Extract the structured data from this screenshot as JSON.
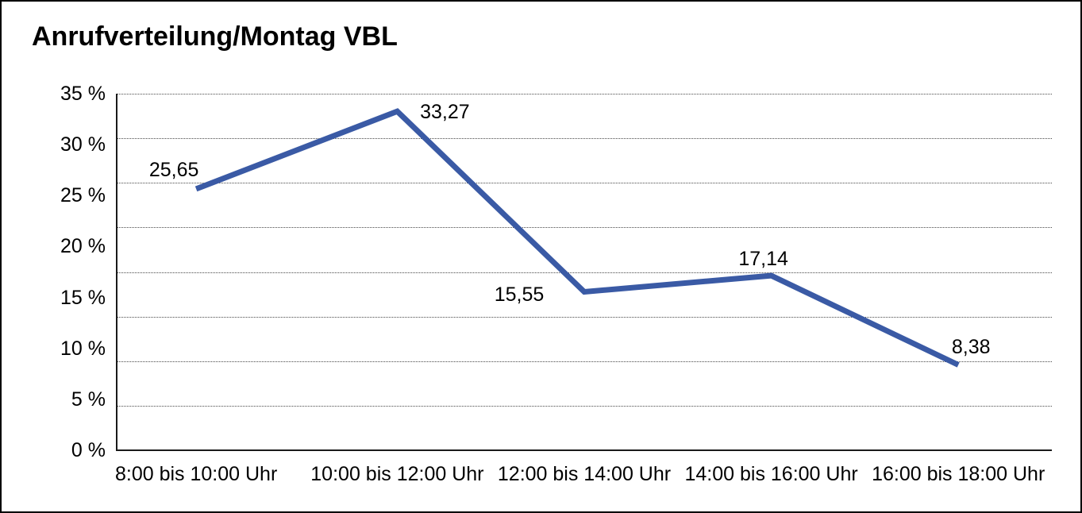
{
  "frame": {
    "title": "Anrufverteilung/Montag VBL"
  },
  "chart_data": {
    "type": "line",
    "title": "Anrufverteilung/Montag VBL",
    "categories": [
      "8:00 bis 10:00 Uhr",
      "10:00 bis 12:00 Uhr",
      "12:00 bis 14:00 Uhr",
      "14:00 bis 16:00 Uhr",
      "16:00 bis 18:00 Uhr"
    ],
    "series": [
      {
        "name": "Anrufverteilung Montag VBL",
        "values": [
          25.65,
          33.27,
          15.55,
          17.14,
          8.38
        ],
        "value_labels": [
          "25,65",
          "33,27",
          "15,55",
          "17,14",
          "8,38"
        ]
      }
    ],
    "xlabel": "",
    "ylabel": "",
    "y_tick_labels": [
      "35 %",
      "30 %",
      "25 %",
      "20 %",
      "15 %",
      "10 %",
      "5 %",
      "0 %"
    ],
    "ylim": [
      0,
      35
    ],
    "y_tick_step": 5,
    "unit": "%",
    "grid": "horizontal-dotted",
    "gridline_count": 8,
    "legend_position": "none",
    "colors": {
      "line": "#3A5AA5",
      "text": "#000000",
      "grid": "#4A4A4A",
      "axis": "#1A1A1A",
      "background": "#FFFFFF",
      "border": "#000000"
    }
  }
}
